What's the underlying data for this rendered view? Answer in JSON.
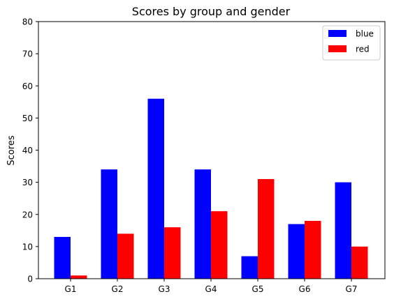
{
  "chart_data": {
    "type": "bar",
    "title": "Scores by group and gender",
    "xlabel": "",
    "ylabel": "Scores",
    "categories": [
      "G1",
      "G2",
      "G3",
      "G4",
      "G5",
      "G6",
      "G7"
    ],
    "series": [
      {
        "name": "blue",
        "color": "#0000ff",
        "values": [
          13,
          34,
          56,
          34,
          7,
          17,
          30
        ]
      },
      {
        "name": "red",
        "color": "#ff0000",
        "values": [
          1,
          14,
          16,
          21,
          31,
          18,
          10
        ]
      }
    ],
    "ylim": [
      0,
      80
    ],
    "yticks": [
      0,
      10,
      20,
      30,
      40,
      50,
      60,
      70,
      80
    ],
    "grid": false,
    "legend_position": "top-right"
  }
}
